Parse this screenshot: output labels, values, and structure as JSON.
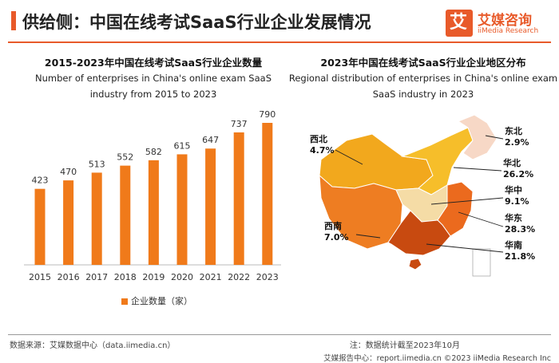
{
  "page": {
    "title": "供给侧：中国在线考试SaaS行业企业发展情况"
  },
  "logo": {
    "mark": "艾",
    "cn": "艾媒咨询",
    "en": "iiMedia Research"
  },
  "left_chart": {
    "title_cn": "2015-2023年中国在线考试SaaS行业企业数量",
    "title_en_line1": "Number of enterprises in China's online exam SaaS",
    "title_en_line2": "industry from 2015 to 2023",
    "legend": "企业数量（家）"
  },
  "right_chart": {
    "title_cn": "2023年中国在线考试SaaS行业企业地区分布",
    "title_en_line1": "Regional distribution of enterprises in China's online exam",
    "title_en_line2": "SaaS industry in 2023"
  },
  "chart_data": [
    {
      "type": "bar",
      "categories": [
        "2015",
        "2016",
        "2017",
        "2018",
        "2019",
        "2020",
        "2021",
        "2022",
        "2023"
      ],
      "series": [
        {
          "name": "企业数量（家）",
          "values": [
            423,
            470,
            513,
            552,
            582,
            615,
            647,
            737,
            790
          ]
        }
      ],
      "bar_color": "#f07a1a",
      "grid": false
    },
    {
      "type": "pie",
      "rendering": "choropleth-map",
      "regions": [
        {
          "name": "西北",
          "value": 4.7,
          "label": "4.7%",
          "color": "#f2a81d"
        },
        {
          "name": "东北",
          "value": 2.9,
          "label": "2.9%",
          "color": "#f7d8c6"
        },
        {
          "name": "华北",
          "value": 26.2,
          "label": "26.2%",
          "color": "#f6be2a"
        },
        {
          "name": "华中",
          "value": 9.1,
          "label": "9.1%",
          "color": "#f5dca6"
        },
        {
          "name": "西南",
          "value": 7.0,
          "label": "7.0%",
          "color": "#ee7d22"
        },
        {
          "name": "华东",
          "value": 28.3,
          "label": "28.3%",
          "color": "#eb6a1e"
        },
        {
          "name": "华南",
          "value": 21.8,
          "label": "21.8%",
          "color": "#c84a10"
        }
      ]
    }
  ],
  "footer": {
    "source": "数据来源：艾媒数据中心（data.iimedia.cn）",
    "note": "注：数据统计截至2023年10月",
    "copyright": "艾媒报告中心：report.iimedia.cn  ©2023  iiMedia Research  Inc"
  }
}
